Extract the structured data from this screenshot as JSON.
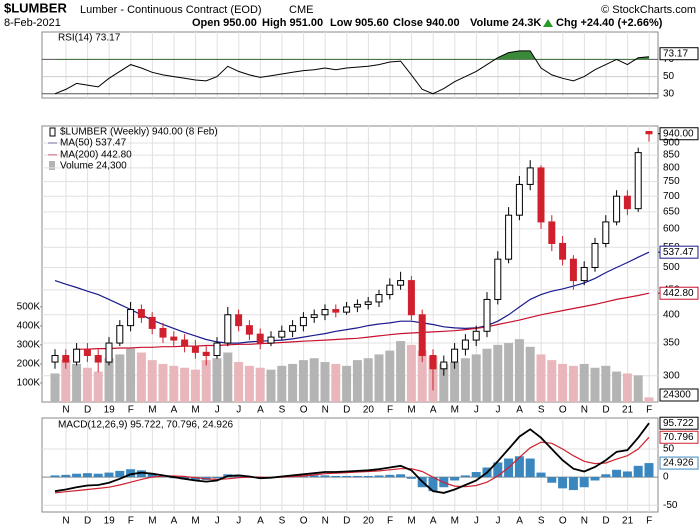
{
  "chart_data": {
    "type": "candlestick",
    "title": "$LUMBER",
    "subtitle": "Lumber - Continuous Contract (EOD)",
    "exchange": "CME",
    "source": "© StockCharts.com",
    "date": "8-Feb-2021",
    "quote": {
      "open": "Open 950.00",
      "high": "High 951.00",
      "low": "Low 905.60",
      "close": "Close 940.00",
      "volume": "Volume 24.3K",
      "change": "Chg +24.40 (+2.66%)"
    },
    "legend_title": "$LUMBER (Weekly) 940.00 (8 Feb)",
    "x_labels": [
      "N",
      "D",
      "19",
      "F",
      "M",
      "A",
      "M",
      "J",
      "J",
      "A",
      "S",
      "O",
      "N",
      "D",
      "20",
      "F",
      "M",
      "A",
      "M",
      "J",
      "J",
      "A",
      "S",
      "O",
      "N",
      "D",
      "21",
      "F"
    ],
    "open": [
      320,
      330,
      320,
      340,
      330,
      320,
      350,
      380,
      410,
      395,
      375,
      360,
      355,
      345,
      335,
      330,
      350,
      400,
      380,
      365,
      350,
      360,
      370,
      380,
      395,
      400,
      410,
      405,
      415,
      420,
      425,
      440,
      460,
      470,
      400,
      330,
      310,
      320,
      340,
      355,
      370,
      430,
      520,
      640,
      740,
      800,
      620,
      560,
      520,
      470,
      500,
      560,
      620,
      700,
      660,
      950
    ],
    "high": [
      340,
      340,
      350,
      350,
      340,
      360,
      390,
      425,
      420,
      405,
      385,
      370,
      365,
      355,
      345,
      360,
      415,
      410,
      390,
      375,
      370,
      380,
      390,
      405,
      410,
      420,
      420,
      425,
      430,
      435,
      450,
      475,
      490,
      480,
      410,
      340,
      330,
      350,
      365,
      380,
      445,
      540,
      665,
      770,
      830,
      810,
      640,
      580,
      530,
      515,
      575,
      640,
      720,
      720,
      880,
      951
    ],
    "low": [
      310,
      310,
      315,
      320,
      305,
      315,
      345,
      370,
      385,
      365,
      350,
      345,
      335,
      325,
      315,
      325,
      345,
      370,
      355,
      340,
      345,
      355,
      360,
      370,
      385,
      390,
      395,
      400,
      405,
      410,
      415,
      430,
      450,
      390,
      320,
      280,
      300,
      310,
      330,
      345,
      360,
      420,
      510,
      625,
      720,
      600,
      540,
      505,
      450,
      460,
      490,
      550,
      610,
      640,
      650,
      905.6
    ],
    "close": [
      330,
      320,
      340,
      330,
      320,
      350,
      380,
      410,
      395,
      375,
      360,
      355,
      345,
      335,
      330,
      350,
      400,
      380,
      365,
      350,
      360,
      370,
      380,
      395,
      400,
      410,
      405,
      415,
      420,
      425,
      440,
      460,
      470,
      400,
      330,
      310,
      320,
      340,
      355,
      370,
      430,
      520,
      640,
      740,
      800,
      620,
      560,
      520,
      470,
      500,
      560,
      620,
      700,
      660,
      860,
      940
    ],
    "up_color": "#000000",
    "down_color": "#d0202e",
    "log_scale": true,
    "grid": true,
    "ylim": [
      265,
      975
    ],
    "yticks": [
      {
        "value": 940,
        "label": "940.00",
        "color": "#000000"
      },
      900,
      850,
      800,
      750,
      700,
      650,
      600,
      550,
      {
        "value": 537.47,
        "label": "537.47",
        "color": "#1a1a8c"
      },
      500,
      450,
      {
        "value": 442.8,
        "label": "442.80",
        "color": "#c8102e"
      },
      400,
      350,
      300
    ],
    "series": [
      {
        "name": "MA(50) 537.47",
        "color": "#1a1a8c",
        "values": [
          470,
          462,
          455,
          447,
          440,
          430,
          420,
          410,
          400,
          390,
          382,
          375,
          368,
          362,
          356,
          352,
          350,
          350,
          352,
          353,
          354,
          355,
          357,
          360,
          363,
          366,
          370,
          373,
          376,
          380,
          383,
          385,
          388,
          388,
          385,
          382,
          378,
          376,
          375,
          376,
          380,
          388,
          400,
          415,
          430,
          440,
          447,
          452,
          458,
          465,
          475,
          488,
          500,
          512,
          525,
          537.47
        ]
      },
      {
        "name": "MA(200) 442.80",
        "color": "#c8102e",
        "values": [
          null,
          null,
          340,
          340,
          341,
          341,
          342,
          342,
          343,
          343,
          344,
          344,
          345,
          345,
          346,
          346,
          347,
          348,
          348,
          349,
          350,
          351,
          352,
          353,
          354,
          355,
          356,
          357,
          358,
          360,
          362,
          364,
          366,
          367,
          368,
          369,
          370,
          371,
          373,
          375,
          378,
          382,
          386,
          390,
          395,
          400,
          404,
          408,
          412,
          416,
          420,
          425,
          430,
          434,
          438,
          442.8
        ]
      }
    ],
    "volume": {
      "name": "Volume 24,300",
      "axis": "y2",
      "up_color": "#b4b4b4",
      "down_color": "#e9b7bb",
      "values": [
        150000,
        220000,
        200000,
        180000,
        160000,
        230000,
        250000,
        280000,
        260000,
        220000,
        200000,
        190000,
        180000,
        170000,
        220000,
        230000,
        260000,
        210000,
        190000,
        180000,
        170000,
        190000,
        200000,
        220000,
        230000,
        210000,
        200000,
        190000,
        220000,
        230000,
        250000,
        270000,
        320000,
        300000,
        270000,
        240000,
        200000,
        210000,
        230000,
        250000,
        280000,
        300000,
        310000,
        330000,
        290000,
        250000,
        220000,
        200000,
        190000,
        200000,
        180000,
        190000,
        160000,
        150000,
        140000,
        24300
      ]
    },
    "y2lim": [
      0,
      1450000
    ],
    "y2ticks": [
      {
        "value": 100000,
        "label": "100K"
      },
      {
        "value": 200000,
        "label": "200K"
      },
      {
        "value": 300000,
        "label": "300K"
      },
      {
        "value": 400000,
        "label": "400K"
      },
      {
        "value": 500000,
        "label": "500K"
      }
    ],
    "rsi": {
      "type": "line",
      "name": "RSI(14) 73.17",
      "color": "#000000",
      "overbought_color": "#3a8a3a",
      "oversold_color": "#9a9a9a",
      "values": [
        30,
        35,
        42,
        40,
        38,
        48,
        56,
        64,
        60,
        55,
        52,
        50,
        48,
        46,
        45,
        50,
        62,
        56,
        52,
        49,
        51,
        53,
        55,
        57,
        58,
        60,
        58,
        60,
        61,
        62,
        64,
        67,
        68,
        52,
        35,
        30,
        36,
        44,
        50,
        56,
        64,
        72,
        78,
        80,
        80,
        60,
        52,
        48,
        45,
        50,
        58,
        64,
        70,
        64,
        72,
        73.17
      ],
      "ylim": [
        25,
        102
      ],
      "yticks": [
        70,
        50,
        30
      ]
    },
    "macd": {
      "type": "macd",
      "name": "MACD(12,26,9) 95.722, 70.796, 24.926",
      "macd_color": "#000000",
      "signal_color": "#d0202e",
      "hist_color": "#3a87c0",
      "macd_values": [
        -25,
        -22,
        -18,
        -15,
        -14,
        -10,
        -3,
        5,
        8,
        6,
        3,
        0,
        -3,
        -6,
        -8,
        -6,
        2,
        3,
        1,
        -2,
        -1,
        1,
        3,
        5,
        7,
        9,
        9,
        10,
        11,
        12,
        14,
        17,
        20,
        12,
        -8,
        -25,
        -28,
        -22,
        -14,
        -6,
        8,
        28,
        50,
        72,
        85,
        70,
        50,
        30,
        15,
        10,
        18,
        30,
        45,
        48,
        70,
        95.722
      ],
      "signal_values": [
        -28,
        -26,
        -24,
        -22,
        -20,
        -18,
        -14,
        -9,
        -4,
        0,
        2,
        2,
        1,
        -1,
        -3,
        -4,
        -3,
        -1,
        0,
        0,
        -1,
        0,
        1,
        2,
        4,
        6,
        7,
        8,
        9,
        10,
        11,
        13,
        15,
        15,
        10,
        0,
        -10,
        -16,
        -17,
        -15,
        -9,
        2,
        17,
        35,
        52,
        62,
        60,
        50,
        38,
        28,
        24,
        25,
        32,
        38,
        50,
        70.796
      ],
      "hist_values": [
        3,
        4,
        6,
        7,
        6,
        8,
        11,
        14,
        12,
        6,
        1,
        -2,
        -4,
        -5,
        -5,
        -2,
        5,
        4,
        1,
        -2,
        0,
        1,
        2,
        3,
        3,
        3,
        2,
        2,
        2,
        2,
        3,
        4,
        5,
        -3,
        -18,
        -25,
        -18,
        -6,
        3,
        9,
        17,
        26,
        33,
        37,
        33,
        8,
        -10,
        -20,
        -23,
        -18,
        -6,
        5,
        13,
        10,
        20,
        24.926
      ],
      "ylim": [
        -62,
        105
      ],
      "yticks": [
        50,
        0,
        -50
      ]
    }
  }
}
